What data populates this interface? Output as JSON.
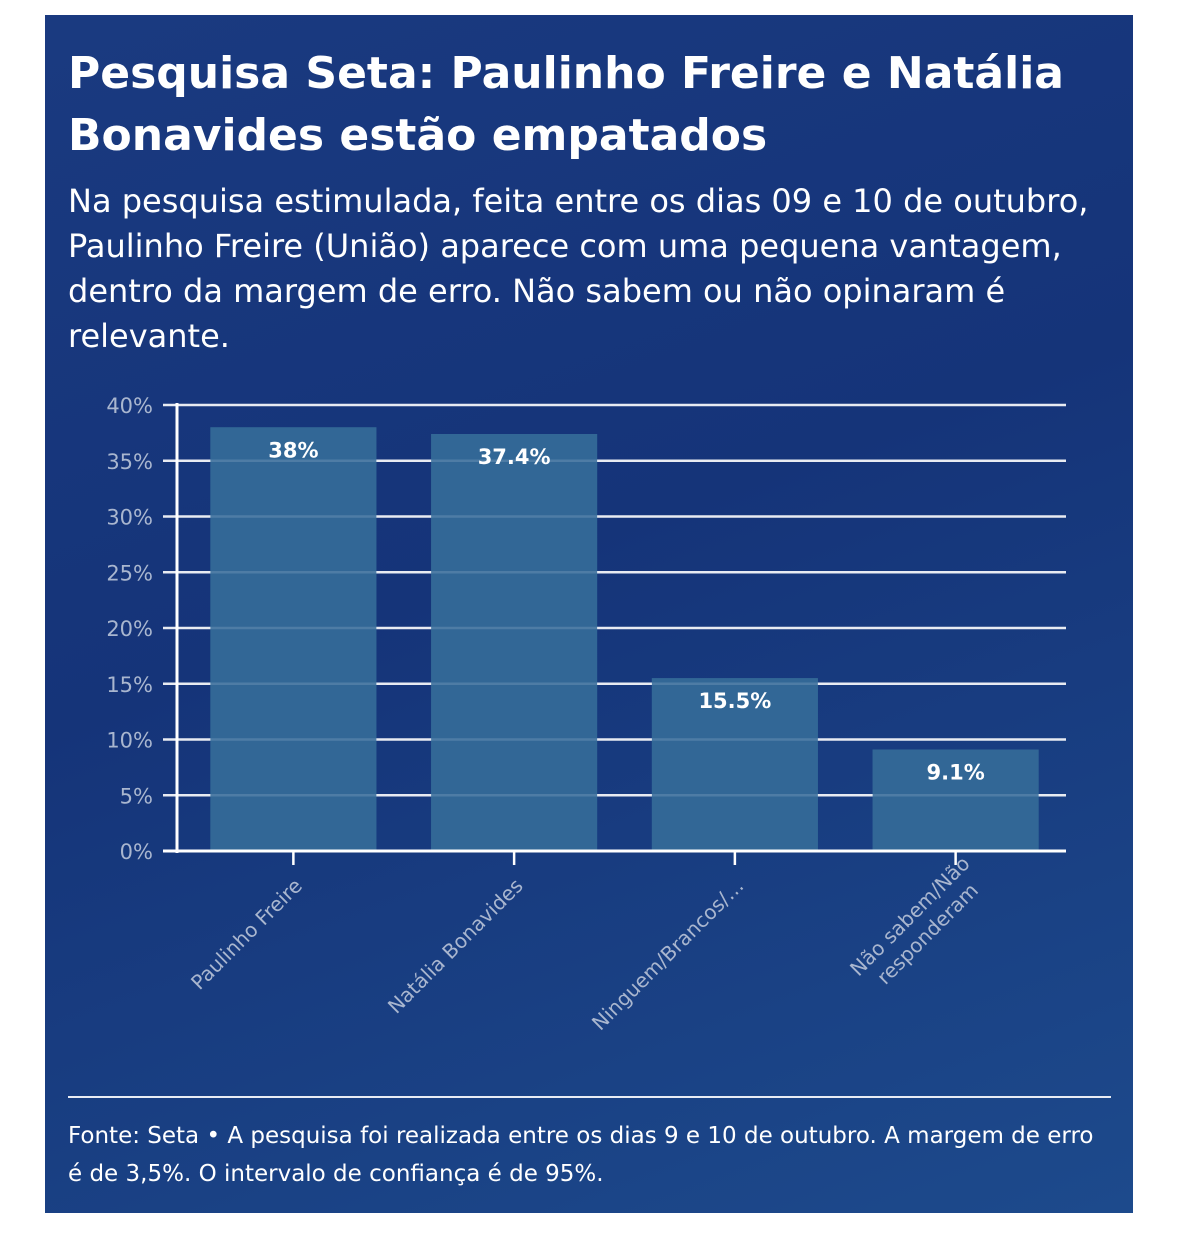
{
  "title": "Pesquisa Seta: Paulinho Freire e Natália Bonavides estão empatados",
  "subtitle": "Na pesquisa estimulada, feita entre os dias 09 e 10 de outubro, Paulinho Freire (União) aparece com uma pequena vantagem, dentro da margem de erro. Não sabem ou não opinaram é relevante.",
  "footer": "Fonte: Seta • A pesquisa foi realizada entre os dias 9 e 10 de outubro. A margem de erro é de 3,5%. O intervalo de confiança é de 95%.",
  "colors": {
    "background": "#1a3a80",
    "bar": "#336796",
    "grid": "#ffffff",
    "tick_label": "#a9b6cf"
  },
  "chart_data": {
    "type": "bar",
    "categories": [
      "Paulinho Freire",
      "Natália Bonavides",
      "Ninguem/Brancos/…",
      [
        "Não sabem/Não",
        "responderam"
      ]
    ],
    "values": [
      38,
      37.4,
      15.5,
      9.1
    ],
    "data_labels": [
      "38%",
      "37.4%",
      "15.5%",
      "9.1%"
    ],
    "yticks": [
      "0%",
      "5%",
      "10%",
      "15%",
      "20%",
      "25%",
      "30%",
      "35%",
      "40%"
    ],
    "ylim": [
      0,
      40
    ],
    "grid": true,
    "xlabel": "",
    "ylabel": ""
  }
}
